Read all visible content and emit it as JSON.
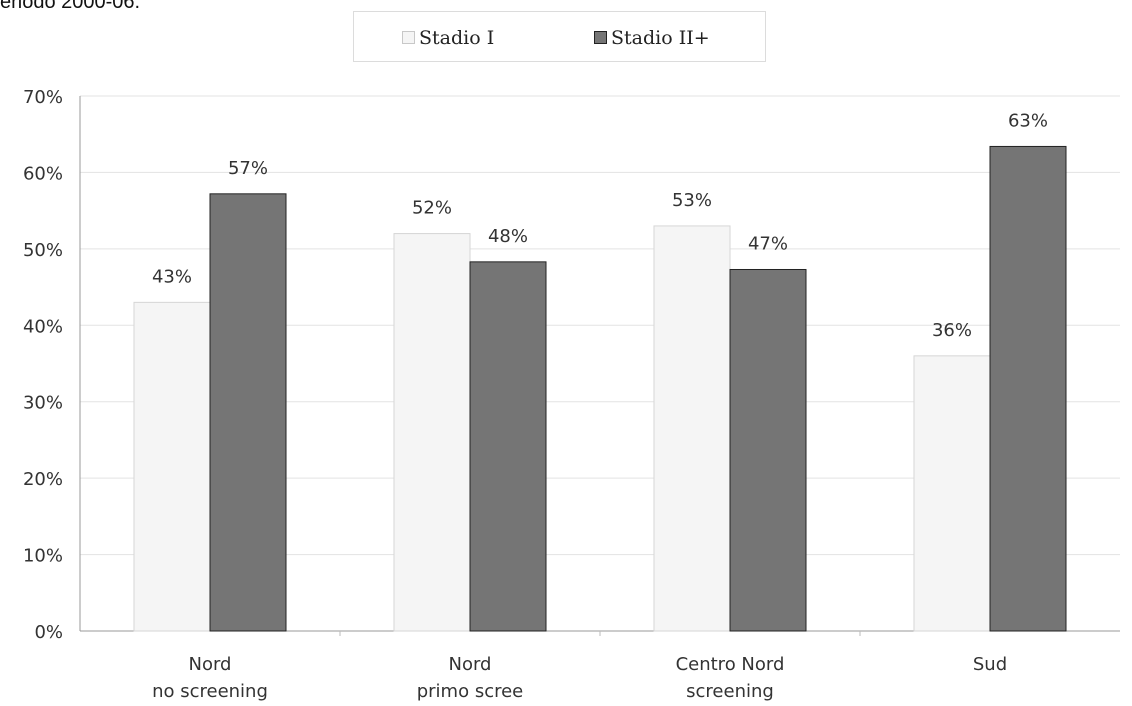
{
  "header": {
    "caption": "eriodo 2000-06."
  },
  "chart_data": {
    "type": "bar",
    "categories": [
      [
        "Nord",
        "no screening"
      ],
      [
        "Nord",
        "primo scree"
      ],
      [
        "Centro Nord",
        "screening"
      ],
      [
        "Sud"
      ]
    ],
    "series": [
      {
        "name": "Stadio I",
        "values": [
          43,
          52,
          53,
          36
        ],
        "labels": [
          "43%",
          "52%",
          "53%",
          "36%"
        ],
        "color": "#f5f5f5"
      },
      {
        "name": "Stadio II+",
        "values": [
          57.2,
          48.3,
          47.3,
          63.4
        ],
        "labels": [
          "57%",
          "48%",
          "47%",
          "63%"
        ],
        "color": "#757575"
      }
    ],
    "ylim": [
      0,
      70
    ],
    "yticks": [
      "0%",
      "10%",
      "20%",
      "30%",
      "40%",
      "50%",
      "60%",
      "70%"
    ],
    "grid": true,
    "legend_position": "top",
    "title": "",
    "xlabel": "",
    "ylabel": ""
  }
}
